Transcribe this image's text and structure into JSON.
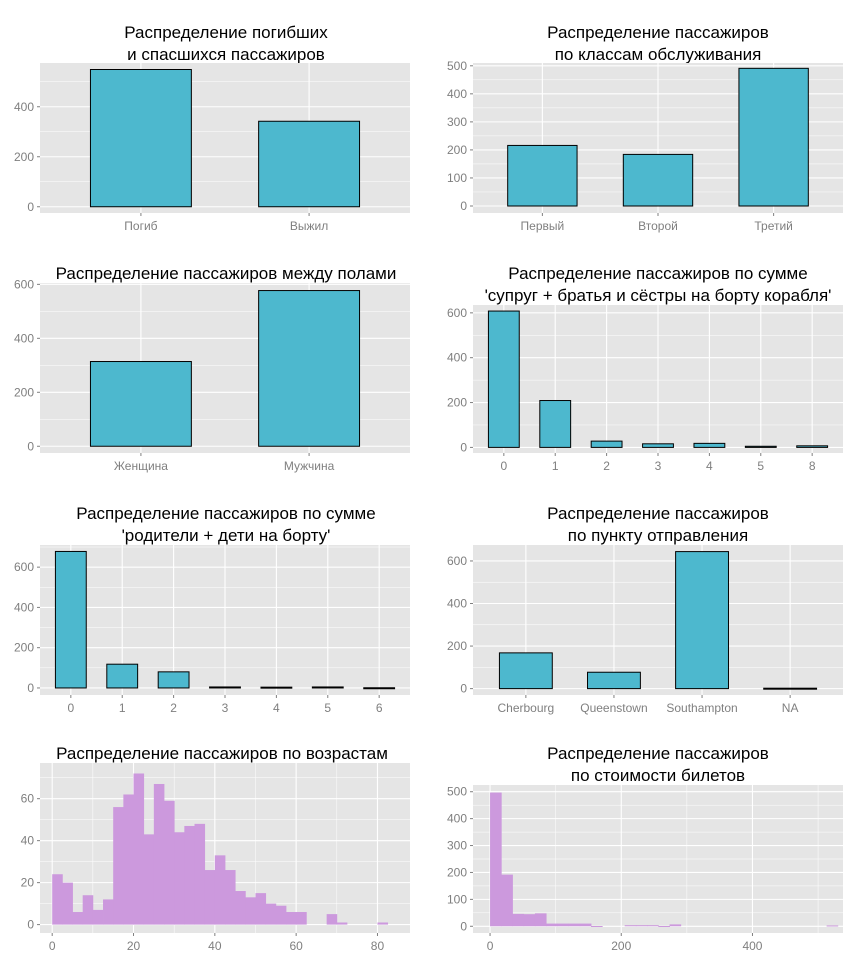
{
  "colors": {
    "bar_fill": "#4DB8CE",
    "bar_stroke": "#000000",
    "hist_fill": "#CC99DD",
    "panel_bg": "#E5E5E5",
    "grid": "#FFFFFF",
    "tick_text": "#7F7F7F"
  },
  "chart_data": [
    {
      "type": "bar",
      "title_lines": [
        "Распределение погибших",
        "и спасшихся пассажиров"
      ],
      "categories": [
        "Погиб",
        "Выжил"
      ],
      "values": [
        549,
        342
      ],
      "ylim": [
        -25,
        575
      ],
      "yticks": [
        0,
        200,
        400
      ],
      "grid": true
    },
    {
      "type": "bar",
      "title_lines": [
        "Распределение пассажиров",
        "по классам обслуживания"
      ],
      "categories": [
        "Первый",
        "Второй",
        "Третий"
      ],
      "values": [
        216,
        184,
        491
      ],
      "ylim": [
        -25,
        510
      ],
      "yticks": [
        0,
        100,
        200,
        300,
        400,
        500
      ],
      "grid": true
    },
    {
      "type": "bar",
      "title_lines": [
        "Распределение пассажиров между полами"
      ],
      "categories": [
        "Женщина",
        "Мужчина"
      ],
      "values": [
        314,
        577
      ],
      "ylim": [
        -25,
        605
      ],
      "yticks": [
        0,
        200,
        400,
        600
      ],
      "grid": true
    },
    {
      "type": "bar",
      "title_lines": [
        "Распределение пассажиров по сумме",
        "'супруг + братья и сёстры на борту корабля'"
      ],
      "categories": [
        "0",
        "1",
        "2",
        "3",
        "4",
        "5",
        "8"
      ],
      "values": [
        608,
        209,
        28,
        16,
        18,
        5,
        7
      ],
      "ylim": [
        -25,
        635
      ],
      "yticks": [
        0,
        200,
        400,
        600
      ],
      "grid": true
    },
    {
      "type": "bar",
      "title_lines": [
        "Распределение пассажиров по сумме",
        "'родители + дети на борту'"
      ],
      "categories": [
        "0",
        "1",
        "2",
        "3",
        "4",
        "5",
        "6"
      ],
      "values": [
        678,
        118,
        80,
        5,
        4,
        5,
        1
      ],
      "ylim": [
        -35,
        710
      ],
      "yticks": [
        0,
        200,
        400,
        600
      ],
      "grid": true
    },
    {
      "type": "bar",
      "title_lines": [
        "Распределение пассажиров",
        "по пункту отправления"
      ],
      "categories": [
        "Cherbourg",
        "Queenstown",
        "Southampton",
        "NA"
      ],
      "values": [
        168,
        77,
        644,
        2
      ],
      "ylim": [
        -30,
        675
      ],
      "yticks": [
        0,
        200,
        400,
        600
      ],
      "grid": true
    },
    {
      "type": "histogram",
      "title_lines": [
        "Распределение пассажиров по возрастам"
      ],
      "bin_start": 0,
      "bin_width": 2.5,
      "counts": [
        24,
        20,
        6,
        14,
        7,
        12,
        56,
        62,
        72,
        43,
        67,
        59,
        44,
        47,
        48,
        26,
        33,
        26,
        16,
        13,
        15,
        10,
        9,
        6,
        6,
        0,
        0,
        5,
        1,
        0,
        0,
        0,
        1
      ],
      "xlim": [
        -3,
        88
      ],
      "xticks": [
        0,
        20,
        40,
        60,
        80
      ],
      "ylim": [
        -4,
        77
      ],
      "yticks": [
        0,
        20,
        40,
        60
      ],
      "grid": true
    },
    {
      "type": "histogram",
      "title_lines": [
        "Распределение пассажиров",
        "по стоимости билетов"
      ],
      "bin_start": 0,
      "bin_width": 17.1,
      "counts": [
        497,
        192,
        46,
        45,
        48,
        10,
        10,
        10,
        10,
        1,
        0,
        0,
        4,
        4,
        4,
        1,
        7,
        0,
        0,
        0,
        0,
        0,
        0,
        0,
        0,
        0,
        0,
        0,
        0,
        0,
        3
      ],
      "xlim": [
        -26,
        538
      ],
      "xticks": [
        0,
        200,
        400
      ],
      "ylim": [
        -25,
        525
      ],
      "yticks": [
        0,
        100,
        200,
        300,
        400,
        500
      ],
      "grid": true
    }
  ]
}
